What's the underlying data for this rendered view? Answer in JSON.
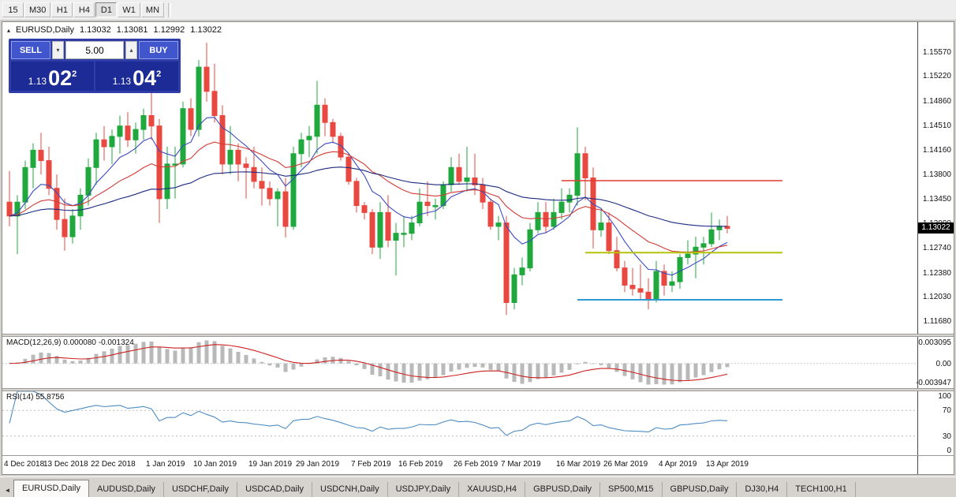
{
  "toolbar": {
    "timeframes": [
      "15",
      "M30",
      "H1",
      "H4",
      "D1",
      "W1",
      "MN"
    ],
    "active_timeframe": "D1"
  },
  "icons": {
    "chart_collapse": "▴",
    "volume_down": "▾",
    "volume_up": "▴",
    "tab_scroll_left": "◄"
  },
  "chart_header": {
    "symbol": "EURUSD,Daily",
    "open": "1.13032",
    "high": "1.13081",
    "low": "1.12992",
    "close": "1.13022"
  },
  "trade_panel": {
    "sell_label": "SELL",
    "buy_label": "BUY",
    "volume": "5.00",
    "bid": {
      "prefix": "1.13",
      "big": "02",
      "sup": "2"
    },
    "ask": {
      "prefix": "1.13",
      "big": "04",
      "sup": "2"
    }
  },
  "price_axis": {
    "labels": [
      "1.15570",
      "1.15220",
      "1.14860",
      "1.14510",
      "1.14160",
      "1.13800",
      "1.13450",
      "1.13090",
      "1.12740",
      "1.12380",
      "1.12030",
      "1.11680"
    ],
    "current_price": "1.13022"
  },
  "macd_panel": {
    "label": "MACD(12,26,9) 0.000080 -0.001324",
    "axis_top": "0.003095",
    "axis_zero": "0.00",
    "axis_bottom": "-0.003947"
  },
  "rsi_panel": {
    "label": "RSI(14) 55.8756",
    "axis": [
      "100",
      "70",
      "30",
      "0"
    ]
  },
  "date_axis": {
    "labels": [
      "4 Dec 2018",
      "13 Dec 2018",
      "22 Dec 2018",
      "1 Jan 2019",
      "10 Jan 2019",
      "19 Jan 2019",
      "29 Jan 2019",
      "7 Feb 2019",
      "16 Feb 2019",
      "26 Feb 2019",
      "7 Mar 2019",
      "16 Mar 2019",
      "26 Mar 2019",
      "4 Apr 2019",
      "13 Apr 2019"
    ],
    "label_indices": [
      0,
      7,
      13,
      20,
      26,
      33,
      39,
      46,
      52,
      59,
      65,
      72,
      78,
      85,
      91
    ]
  },
  "bottom_tabs": {
    "items": [
      "EURUSD,Daily",
      "AUDUSD,Daily",
      "USDCHF,Daily",
      "USDCAD,Daily",
      "USDCNH,Daily",
      "USDJPY,Daily",
      "XAUUSD,H4",
      "GBPUSD,Daily",
      "SP500,M15",
      "GBPUSD,Daily",
      "DJ30,H4",
      "TECH100,H1"
    ],
    "active_index": 0
  },
  "chart_data": {
    "type": "candlestick",
    "symbol": "EURUSD",
    "timeframe": "Daily",
    "price_range": [
      1.115,
      1.16
    ],
    "colors": {
      "up": "#1fa83c",
      "down": "#e8483f"
    },
    "candles": [
      [
        1.134,
        1.1385,
        1.1305,
        1.132
      ],
      [
        1.132,
        1.135,
        1.1265,
        1.134
      ],
      [
        1.134,
        1.14,
        1.133,
        1.139
      ],
      [
        1.139,
        1.1425,
        1.136,
        1.1415
      ],
      [
        1.1415,
        1.144,
        1.138,
        1.14
      ],
      [
        1.14,
        1.142,
        1.135,
        1.136
      ],
      [
        1.136,
        1.138,
        1.13,
        1.1315
      ],
      [
        1.1315,
        1.1345,
        1.127,
        1.129
      ],
      [
        1.129,
        1.133,
        1.128,
        1.132
      ],
      [
        1.132,
        1.136,
        1.13,
        1.135
      ],
      [
        1.135,
        1.1403,
        1.1335,
        1.139
      ],
      [
        1.139,
        1.144,
        1.1365,
        1.143
      ],
      [
        1.143,
        1.145,
        1.14,
        1.142
      ],
      [
        1.142,
        1.1445,
        1.1395,
        1.1435
      ],
      [
        1.1435,
        1.1465,
        1.141,
        1.145
      ],
      [
        1.145,
        1.147,
        1.142,
        1.143
      ],
      [
        1.143,
        1.1455,
        1.141,
        1.1445
      ],
      [
        1.1445,
        1.1475,
        1.143,
        1.1465
      ],
      [
        1.1465,
        1.15,
        1.143,
        1.145
      ],
      [
        1.145,
        1.146,
        1.131,
        1.1345
      ],
      [
        1.1345,
        1.142,
        1.133,
        1.1395
      ],
      [
        1.1395,
        1.142,
        1.1345,
        1.1395
      ],
      [
        1.1395,
        1.1485,
        1.139,
        1.1475
      ],
      [
        1.1475,
        1.149,
        1.1435,
        1.1445
      ],
      [
        1.1445,
        1.1545,
        1.1435,
        1.1535
      ],
      [
        1.1535,
        1.157,
        1.1485,
        1.15
      ],
      [
        1.15,
        1.154,
        1.1455,
        1.1465
      ],
      [
        1.1465,
        1.148,
        1.138,
        1.1395
      ],
      [
        1.1395,
        1.145,
        1.138,
        1.1415
      ],
      [
        1.1415,
        1.1425,
        1.137,
        1.1395
      ],
      [
        1.1395,
        1.1405,
        1.1345,
        1.139
      ],
      [
        1.139,
        1.142,
        1.136,
        1.137
      ],
      [
        1.137,
        1.139,
        1.1335,
        1.136
      ],
      [
        1.136,
        1.137,
        1.1335,
        1.1345
      ],
      [
        1.1345,
        1.136,
        1.1305,
        1.1355
      ],
      [
        1.1355,
        1.1375,
        1.1289,
        1.1305
      ],
      [
        1.1305,
        1.142,
        1.13,
        1.141
      ],
      [
        1.141,
        1.144,
        1.139,
        1.143
      ],
      [
        1.143,
        1.145,
        1.1405,
        1.1435
      ],
      [
        1.1435,
        1.1515,
        1.141,
        1.148
      ],
      [
        1.148,
        1.149,
        1.1435,
        1.1455
      ],
      [
        1.1455,
        1.146,
        1.1425,
        1.1435
      ],
      [
        1.1435,
        1.144,
        1.14,
        1.1405
      ],
      [
        1.1405,
        1.141,
        1.1365,
        1.137
      ],
      [
        1.137,
        1.1375,
        1.1325,
        1.1335
      ],
      [
        1.1335,
        1.134,
        1.1315,
        1.1325
      ],
      [
        1.1325,
        1.133,
        1.1265,
        1.1275
      ],
      [
        1.1275,
        1.134,
        1.1258,
        1.1325
      ],
      [
        1.1325,
        1.135,
        1.1275,
        1.1285
      ],
      [
        1.1285,
        1.131,
        1.1234,
        1.1295
      ],
      [
        1.1295,
        1.132,
        1.1275,
        1.1295
      ],
      [
        1.1295,
        1.132,
        1.1285,
        1.131
      ],
      [
        1.131,
        1.136,
        1.1305,
        1.134
      ],
      [
        1.134,
        1.137,
        1.132,
        1.1335
      ],
      [
        1.1335,
        1.1345,
        1.1315,
        1.1335
      ],
      [
        1.1335,
        1.137,
        1.133,
        1.1365
      ],
      [
        1.1365,
        1.1405,
        1.1355,
        1.139
      ],
      [
        1.139,
        1.141,
        1.1365,
        1.137
      ],
      [
        1.137,
        1.142,
        1.1355,
        1.1375
      ],
      [
        1.1375,
        1.141,
        1.135,
        1.1365
      ],
      [
        1.1365,
        1.1375,
        1.133,
        1.134
      ],
      [
        1.134,
        1.1345,
        1.13,
        1.1305
      ],
      [
        1.1305,
        1.132,
        1.1285,
        1.131
      ],
      [
        1.131,
        1.132,
        1.1177,
        1.1195
      ],
      [
        1.1195,
        1.1245,
        1.1185,
        1.1235
      ],
      [
        1.1235,
        1.126,
        1.122,
        1.1245
      ],
      [
        1.1245,
        1.131,
        1.124,
        1.13
      ],
      [
        1.13,
        1.134,
        1.1295,
        1.1325
      ],
      [
        1.1325,
        1.134,
        1.1295,
        1.1305
      ],
      [
        1.1305,
        1.1345,
        1.13,
        1.1325
      ],
      [
        1.1325,
        1.136,
        1.1315,
        1.134
      ],
      [
        1.134,
        1.136,
        1.1325,
        1.135
      ],
      [
        1.135,
        1.1448,
        1.1335,
        1.141
      ],
      [
        1.141,
        1.142,
        1.1343,
        1.1375
      ],
      [
        1.1375,
        1.139,
        1.1273,
        1.13
      ],
      [
        1.13,
        1.133,
        1.129,
        1.131
      ],
      [
        1.131,
        1.1325,
        1.1265,
        1.127
      ],
      [
        1.127,
        1.129,
        1.124,
        1.1245
      ],
      [
        1.1245,
        1.1255,
        1.121,
        1.122
      ],
      [
        1.122,
        1.1245,
        1.1205,
        1.1215
      ],
      [
        1.1215,
        1.125,
        1.12,
        1.121
      ],
      [
        1.121,
        1.123,
        1.1185,
        1.12
      ],
      [
        1.12,
        1.1255,
        1.1195,
        1.124
      ],
      [
        1.124,
        1.125,
        1.1205,
        1.122
      ],
      [
        1.122,
        1.124,
        1.121,
        1.1225
      ],
      [
        1.1225,
        1.1265,
        1.1215,
        1.126
      ],
      [
        1.126,
        1.1285,
        1.125,
        1.1265
      ],
      [
        1.1265,
        1.129,
        1.123,
        1.1275
      ],
      [
        1.1275,
        1.129,
        1.125,
        1.128
      ],
      [
        1.128,
        1.1325,
        1.1275,
        1.13
      ],
      [
        1.13,
        1.1315,
        1.1285,
        1.1305
      ],
      [
        1.1305,
        1.132,
        1.1295,
        1.1302
      ]
    ],
    "moving_averages": [
      {
        "period": 8,
        "color": "#3b4cc0"
      },
      {
        "period": 21,
        "color": "#d23b35"
      },
      {
        "period": 55,
        "color": "#1b2a80"
      }
    ],
    "hlines": [
      {
        "price": 1.1371,
        "color": "#e03a30",
        "from_index": 70,
        "to_index": 98,
        "thickness": 1.4
      },
      {
        "price": 1.1267,
        "color": "#b5c20a",
        "from_index": 73,
        "to_index": 98,
        "thickness": 2
      },
      {
        "price": 1.1199,
        "color": "#2f99d4",
        "from_index": 72,
        "to_index": 98,
        "thickness": 2
      }
    ],
    "indicators": {
      "macd": {
        "fast": 12,
        "slow": 26,
        "signal": 9,
        "histogram_color": "#b9b9b9",
        "signal_color": "#cc2222"
      },
      "rsi": {
        "period": 14,
        "color": "#4e8cc2",
        "levels": [
          70,
          30
        ]
      }
    }
  }
}
